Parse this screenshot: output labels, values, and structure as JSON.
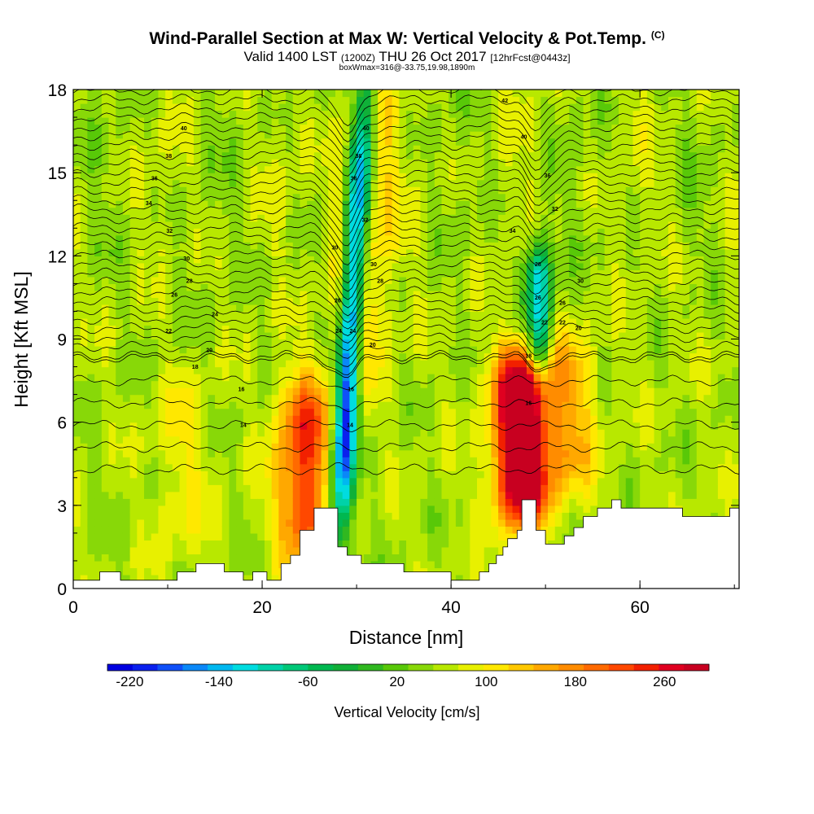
{
  "header": {
    "title": "Wind-Parallel Section at Max W: Vertical Velocity & Pot.Temp.",
    "copyright": "(C)",
    "valid_main": "Valid 1400 LST",
    "valid_utc": "(1200Z)",
    "valid_date": "THU 26 Oct 2017",
    "forecast": "[12hrFcst@0443z]",
    "boxinfo": "boxWmax=316@-33.75,19.98,1890m"
  },
  "chart_data": {
    "type": "heatmap",
    "xlabel": "Distance [nm]",
    "ylabel": "Height [Kft MSL]",
    "xlim": [
      0,
      70.5
    ],
    "ylim": [
      0,
      18
    ],
    "x_ticks": [
      0,
      20,
      40,
      60
    ],
    "y_ticks": [
      0,
      3,
      6,
      9,
      12,
      15,
      18
    ],
    "colorbar": {
      "label": "Vertical Velocity [cm/s]",
      "min": -240,
      "max": 300,
      "step": 20,
      "tick_labels": [
        -220,
        -140,
        -60,
        20,
        100,
        180,
        260
      ],
      "colors": [
        "#0000e0",
        "#0a20ee",
        "#0f50f8",
        "#0a88f8",
        "#00b8f0",
        "#00dce0",
        "#00d2a8",
        "#00c878",
        "#00b850",
        "#10b038",
        "#30b820",
        "#58c808",
        "#88d808",
        "#b8e800",
        "#e8f000",
        "#ffe800",
        "#ffc800",
        "#ffa800",
        "#ff8c00",
        "#ff6a00",
        "#ff4800",
        "#f22000",
        "#e00020",
        "#c80020"
      ]
    },
    "velocity_features": [
      {
        "kind": "downdraft",
        "x": 28.8,
        "z_bottom": 2.5,
        "z_top": 18,
        "peak": -220
      },
      {
        "kind": "updraft",
        "x": 24.5,
        "z_bottom": 1.5,
        "z_top": 7,
        "peak": 180
      },
      {
        "kind": "updraft",
        "x": 30.5,
        "z_bottom": 8,
        "z_top": 18,
        "peak": 110
      },
      {
        "kind": "updraft",
        "x": 47.5,
        "z_bottom": 3,
        "z_top": 8,
        "peak": 300
      },
      {
        "kind": "updraft",
        "x": 52.5,
        "z_bottom": 4,
        "z_top": 8.5,
        "peak": 100
      },
      {
        "kind": "downdraft",
        "x": 49.3,
        "z_bottom": 8,
        "z_top": 12,
        "peak": -140
      },
      {
        "kind": "updraft",
        "x": 11.5,
        "z_bottom": 2,
        "z_top": 7,
        "peak": 60
      }
    ],
    "terrain": [
      [
        0,
        0.3
      ],
      [
        2.8,
        0.3
      ],
      [
        2.8,
        0.6
      ],
      [
        5,
        0.6
      ],
      [
        5,
        0.3
      ],
      [
        11,
        0.3
      ],
      [
        11,
        0.6
      ],
      [
        13,
        0.6
      ],
      [
        13,
        0.9
      ],
      [
        16,
        0.9
      ],
      [
        16,
        0.6
      ],
      [
        18,
        0.6
      ],
      [
        18,
        0.3
      ],
      [
        19,
        0.3
      ],
      [
        19,
        0.6
      ],
      [
        20.5,
        0.6
      ],
      [
        20.5,
        0.3
      ],
      [
        22,
        0.3
      ],
      [
        22,
        0.9
      ],
      [
        23,
        0.9
      ],
      [
        23,
        1.2
      ],
      [
        24,
        1.2
      ],
      [
        24,
        2.1
      ],
      [
        25.5,
        2.1
      ],
      [
        25.5,
        2.9
      ],
      [
        28,
        2.9
      ],
      [
        28,
        1.5
      ],
      [
        29,
        1.5
      ],
      [
        29,
        1.2
      ],
      [
        30.5,
        1.2
      ],
      [
        30.5,
        0.9
      ],
      [
        33,
        0.9
      ],
      [
        33,
        0.9
      ],
      [
        35,
        0.9
      ],
      [
        35,
        0.6
      ],
      [
        40,
        0.6
      ],
      [
        40,
        0.3
      ],
      [
        43,
        0.3
      ],
      [
        43,
        0.6
      ],
      [
        44,
        0.6
      ],
      [
        44,
        0.9
      ],
      [
        44.8,
        0.9
      ],
      [
        44.8,
        1.2
      ],
      [
        45.5,
        1.2
      ],
      [
        45.5,
        1.5
      ],
      [
        46,
        1.5
      ],
      [
        46,
        1.8
      ],
      [
        47,
        1.8
      ],
      [
        47,
        2.1
      ],
      [
        47.5,
        2.1
      ],
      [
        47.5,
        3.2
      ],
      [
        49,
        3.2
      ],
      [
        49,
        2.1
      ],
      [
        50,
        2.1
      ],
      [
        50,
        1.6
      ],
      [
        52,
        1.6
      ],
      [
        52,
        1.9
      ],
      [
        53,
        1.9
      ],
      [
        53,
        2.2
      ],
      [
        54,
        2.2
      ],
      [
        54,
        2.6
      ],
      [
        55.5,
        2.6
      ],
      [
        55.5,
        2.9
      ],
      [
        57,
        2.9
      ],
      [
        57,
        3.2
      ],
      [
        58,
        3.2
      ],
      [
        58,
        2.9
      ],
      [
        64.5,
        2.9
      ],
      [
        64.5,
        2.6
      ],
      [
        69.5,
        2.6
      ],
      [
        69.5,
        2.9
      ],
      [
        70.5,
        2.9
      ]
    ],
    "contour_labels": [
      {
        "x": 11.7,
        "z": 16.6,
        "text": "40"
      },
      {
        "x": 10.1,
        "z": 15.6,
        "text": "38"
      },
      {
        "x": 8.6,
        "z": 14.8,
        "text": "36"
      },
      {
        "x": 8.0,
        "z": 13.9,
        "text": "34"
      },
      {
        "x": 10.2,
        "z": 12.9,
        "text": "32"
      },
      {
        "x": 12.0,
        "z": 11.9,
        "text": "30"
      },
      {
        "x": 12.3,
        "z": 11.1,
        "text": "28"
      },
      {
        "x": 10.7,
        "z": 10.6,
        "text": "26"
      },
      {
        "x": 15.0,
        "z": 9.9,
        "text": "24"
      },
      {
        "x": 10.1,
        "z": 9.3,
        "text": "22"
      },
      {
        "x": 14.4,
        "z": 8.6,
        "text": "20"
      },
      {
        "x": 12.9,
        "z": 8.0,
        "text": "18"
      },
      {
        "x": 17.8,
        "z": 7.2,
        "text": "16"
      },
      {
        "x": 18.0,
        "z": 5.9,
        "text": "14"
      },
      {
        "x": 45.7,
        "z": 17.6,
        "text": "42"
      },
      {
        "x": 31.0,
        "z": 16.6,
        "text": "40"
      },
      {
        "x": 30.2,
        "z": 15.6,
        "text": "38"
      },
      {
        "x": 29.7,
        "z": 14.8,
        "text": "36"
      },
      {
        "x": 30.9,
        "z": 13.3,
        "text": "32"
      },
      {
        "x": 27.7,
        "z": 12.3,
        "text": "30"
      },
      {
        "x": 31.8,
        "z": 11.7,
        "text": "30"
      },
      {
        "x": 32.5,
        "z": 11.1,
        "text": "28"
      },
      {
        "x": 28.0,
        "z": 10.4,
        "text": "26"
      },
      {
        "x": 28.1,
        "z": 9.3,
        "text": "24"
      },
      {
        "x": 29.6,
        "z": 9.3,
        "text": "24"
      },
      {
        "x": 31.7,
        "z": 8.8,
        "text": "20"
      },
      {
        "x": 29.4,
        "z": 7.2,
        "text": "16"
      },
      {
        "x": 29.3,
        "z": 5.9,
        "text": "14"
      },
      {
        "x": 47.7,
        "z": 16.3,
        "text": "40"
      },
      {
        "x": 50.2,
        "z": 14.9,
        "text": "36"
      },
      {
        "x": 51.0,
        "z": 13.7,
        "text": "32"
      },
      {
        "x": 46.5,
        "z": 12.9,
        "text": "34"
      },
      {
        "x": 49.2,
        "z": 11.7,
        "text": "28"
      },
      {
        "x": 53.7,
        "z": 11.1,
        "text": "30"
      },
      {
        "x": 49.2,
        "z": 10.5,
        "text": "26"
      },
      {
        "x": 51.8,
        "z": 10.3,
        "text": "26"
      },
      {
        "x": 49.9,
        "z": 9.6,
        "text": "22"
      },
      {
        "x": 51.8,
        "z": 9.6,
        "text": "22"
      },
      {
        "x": 53.5,
        "z": 9.4,
        "text": "20"
      },
      {
        "x": 48.2,
        "z": 8.4,
        "text": "18"
      },
      {
        "x": 48.2,
        "z": 6.7,
        "text": "16"
      }
    ]
  }
}
